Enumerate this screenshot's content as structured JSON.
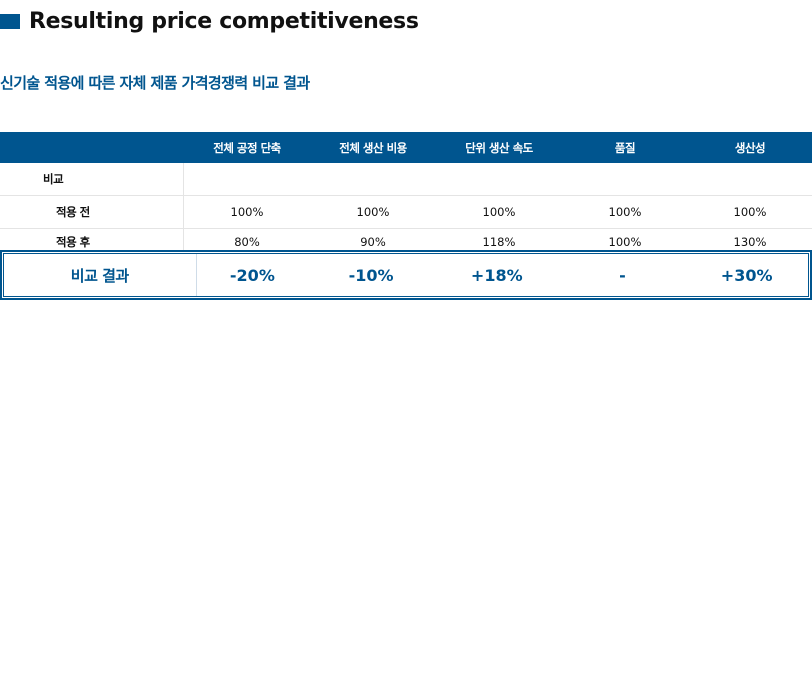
{
  "heading": {
    "title": "Resulting price competitiveness"
  },
  "subtitle": "신기술 적용에 따른 자체 제품 가격경쟁력 비교 결과",
  "table": {
    "columns": [
      "",
      "전체 공정 단축",
      "전체 생산 비용",
      "단위 생산 속도",
      "품질",
      "생산성"
    ],
    "rows": [
      {
        "label": "비교",
        "values": [
          "",
          "",
          "",
          "",
          ""
        ]
      },
      {
        "label": "적용 전",
        "values": [
          "100%",
          "100%",
          "100%",
          "100%",
          "100%"
        ]
      },
      {
        "label": "적용 후",
        "values": [
          "80%",
          "90%",
          "118%",
          "100%",
          "130%"
        ]
      }
    ]
  },
  "result": {
    "label": "비교 결과",
    "values": [
      "-20%",
      "-10%",
      "+18%",
      "-",
      "+30%"
    ]
  },
  "colors": {
    "accent": "#00558f"
  }
}
